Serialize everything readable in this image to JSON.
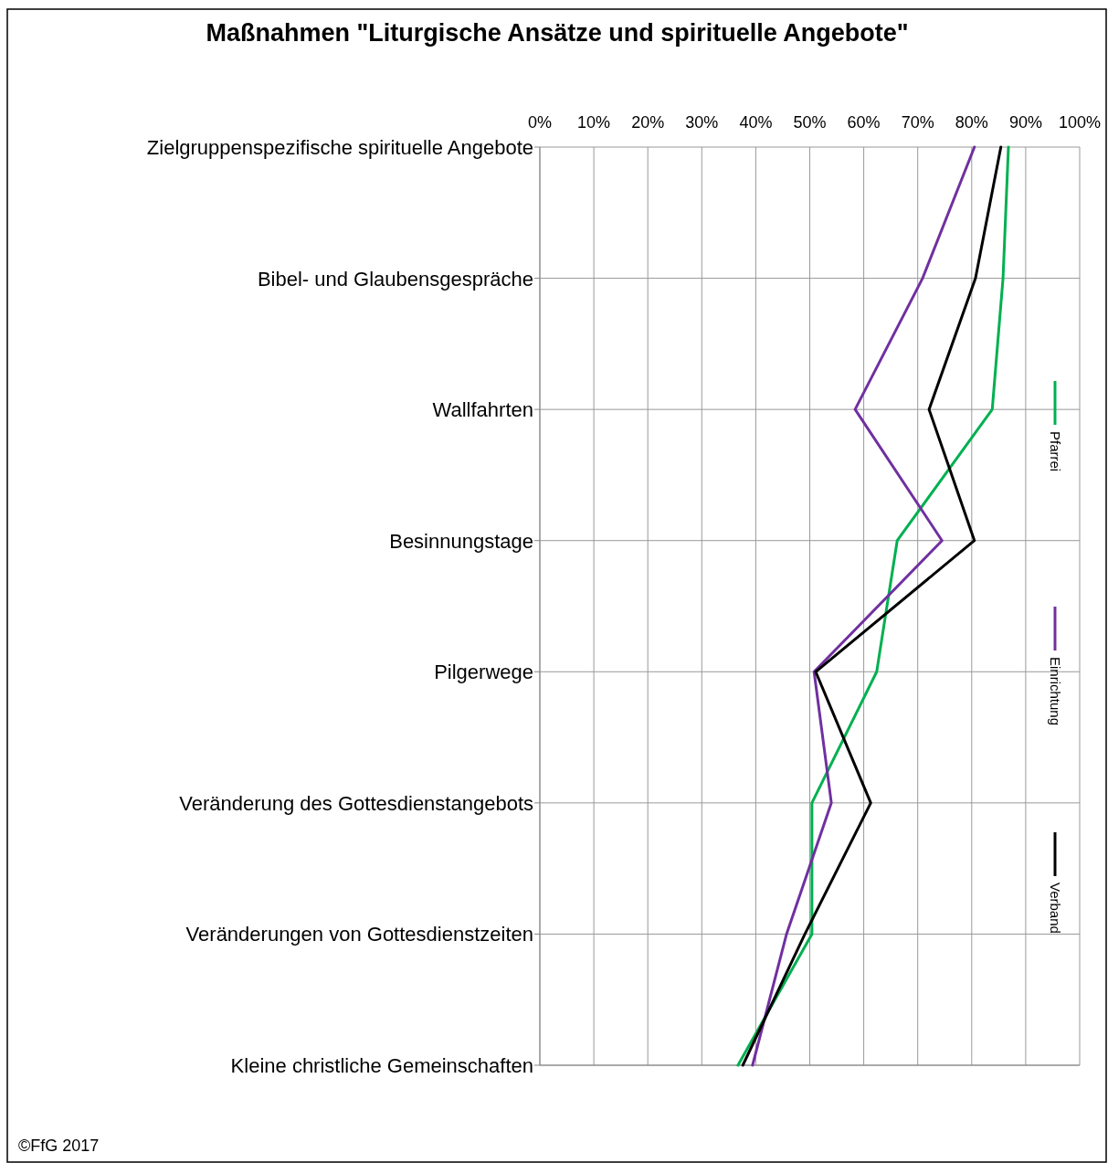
{
  "chart_data": {
    "type": "line",
    "orientation": "horizontal",
    "title": "Maßnahmen \"Liturgische Ansätze und spirituelle Angebote\"",
    "categories": [
      "Zielgruppenspezifische spirituelle Angebote",
      "Bibel- und Glaubensgespräche",
      "Wallfahrten",
      "Besinnungstage",
      "Pilgerwege",
      "Veränderung des Gottesdienstangebots",
      "Veränderungen von Gottesdienstzeiten",
      "Kleine christliche Gemeinschaften"
    ],
    "series": [
      {
        "name": "Pfarrei",
        "color": "#00b050",
        "values": [
          86.8,
          85.8,
          83.8,
          66.2,
          62.4,
          50.4,
          50.4,
          36.7
        ]
      },
      {
        "name": "Einrichtung",
        "color": "#7030a0",
        "values": [
          80.5,
          70.9,
          58.4,
          74.5,
          50.8,
          54,
          45.7,
          39.4
        ]
      },
      {
        "name": "Verband",
        "color": "#000000",
        "values": [
          85.4,
          80.7,
          72.1,
          80.5,
          51.1,
          61.3,
          49.1,
          37.6
        ]
      }
    ],
    "xlim": [
      0,
      100
    ],
    "xticks": [
      {
        "value": 0,
        "label": "0%"
      },
      {
        "value": 10,
        "label": "10%"
      },
      {
        "value": 20,
        "label": "20%"
      },
      {
        "value": 30,
        "label": "30%"
      },
      {
        "value": 40,
        "label": "40%"
      },
      {
        "value": 50,
        "label": "50%"
      },
      {
        "value": 60,
        "label": "60%"
      },
      {
        "value": 70,
        "label": "70%"
      },
      {
        "value": 80,
        "label": "80%"
      },
      {
        "value": 90,
        "label": "90%"
      },
      {
        "value": 100,
        "label": "100%"
      }
    ],
    "grid": true,
    "legend": "right",
    "line_style": "solid",
    "annotations": [
      "©FfG 2017"
    ]
  }
}
